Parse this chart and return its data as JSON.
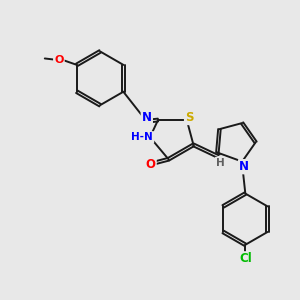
{
  "background_color": "#e8e8e8",
  "bond_color": "#1a1a1a",
  "atom_colors": {
    "O": "#ff0000",
    "N": "#0000ff",
    "S": "#ccaa00",
    "Cl": "#00bb00",
    "C": "#1a1a1a",
    "H": "#606060"
  },
  "figsize": [
    3.0,
    3.0
  ],
  "dpi": 100
}
